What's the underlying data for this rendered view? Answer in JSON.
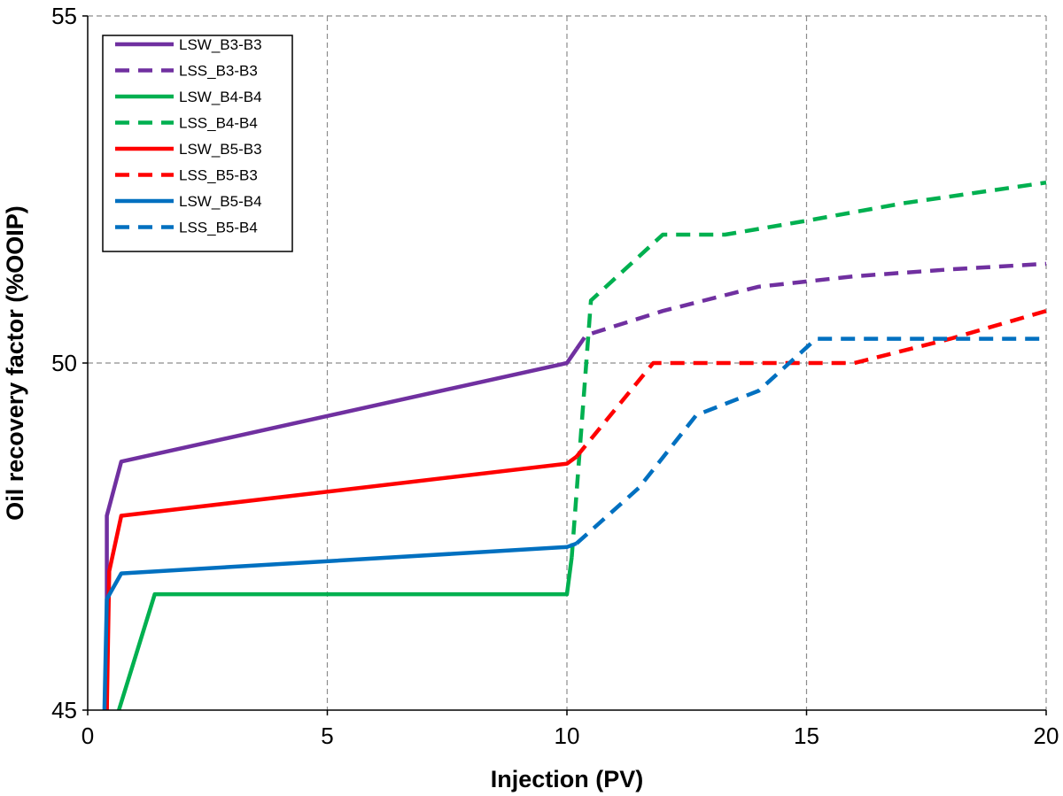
{
  "chart_data": {
    "type": "line",
    "title": "",
    "xlabel": "Injection (PV)",
    "ylabel": "Oil recovery factor (%OOIP)",
    "xlim": [
      0,
      20
    ],
    "ylim": [
      45,
      55
    ],
    "xticks": [
      0,
      5,
      10,
      15,
      20
    ],
    "yticks": [
      45,
      50,
      55
    ],
    "xtick_labels": [
      "0",
      "5",
      "10",
      "15",
      "20"
    ],
    "ytick_labels": [
      "45",
      "50",
      "55"
    ],
    "grid": true,
    "legend_position": "top-left",
    "series": [
      {
        "name": "LSW_B3-B3",
        "color": "#7030a0",
        "dash": "solid",
        "x": [
          0.4,
          0.4,
          0.7,
          10.0,
          10.2
        ],
        "y": [
          45.0,
          47.8,
          48.58,
          50.0,
          50.2
        ]
      },
      {
        "name": "LSS_B3-B3",
        "color": "#7030a0",
        "dash": "dashed",
        "x": [
          10.2,
          10.4,
          12.0,
          14.0,
          16.0,
          18.0,
          20.0
        ],
        "y": [
          50.2,
          50.4,
          50.75,
          51.1,
          51.25,
          51.35,
          51.43
        ]
      },
      {
        "name": "LSW_B4-B4",
        "color": "#00b050",
        "dash": "solid",
        "x": [
          0.65,
          1.4,
          10.0,
          10.1
        ],
        "y": [
          45.0,
          46.67,
          46.67,
          47.2
        ]
      },
      {
        "name": "LSS_B4-B4",
        "color": "#00b050",
        "dash": "dashed",
        "x": [
          10.1,
          10.5,
          12.0,
          13.3,
          15.0,
          17.0,
          20.0
        ],
        "y": [
          47.2,
          50.9,
          51.85,
          51.85,
          52.05,
          52.3,
          52.6
        ]
      },
      {
        "name": "LSW_B5-B3",
        "color": "#ff0000",
        "dash": "solid",
        "x": [
          0.4,
          0.45,
          0.7,
          10.0,
          10.2
        ],
        "y": [
          45.0,
          47.0,
          47.8,
          48.55,
          48.65
        ]
      },
      {
        "name": "LSS_B5-B3",
        "color": "#ff0000",
        "dash": "dashed",
        "x": [
          10.2,
          11.8,
          14.0,
          16.0,
          18.0,
          20.0
        ],
        "y": [
          48.65,
          50.0,
          50.0,
          50.0,
          50.35,
          50.75
        ]
      },
      {
        "name": "LSW_B5-B4",
        "color": "#0070c0",
        "dash": "solid",
        "x": [
          0.35,
          0.4,
          0.7,
          10.0,
          10.2
        ],
        "y": [
          45.0,
          46.6,
          46.97,
          47.35,
          47.4
        ]
      },
      {
        "name": "LSS_B5-B4",
        "color": "#0070c0",
        "dash": "dashed",
        "x": [
          10.2,
          11.5,
          12.7,
          14.0,
          15.2,
          17.0,
          20.0
        ],
        "y": [
          47.4,
          48.2,
          49.25,
          49.6,
          50.35,
          50.35,
          50.35
        ]
      }
    ]
  }
}
